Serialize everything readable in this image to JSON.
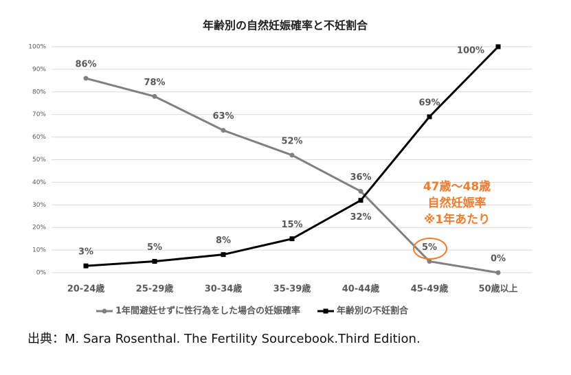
{
  "chart_data": {
    "type": "line",
    "title": "年齢別の自然妊娠確率と不妊割合",
    "categories": [
      "20-24歳",
      "25-29歳",
      "30-34歳",
      "35-39歳",
      "40-44歳",
      "45-49歳",
      "50歳以上"
    ],
    "series": [
      {
        "name": "1年間避妊せずに性行為をした場合の妊娠確率",
        "color": "#808080",
        "marker": "circle",
        "values": [
          86,
          78,
          63,
          52,
          36,
          5,
          0
        ],
        "value_labels": [
          "86%",
          "78%",
          "63%",
          "52%",
          "36%",
          "5%",
          "0%"
        ]
      },
      {
        "name": "年齢別の不妊割合",
        "color": "#000000",
        "marker": "square",
        "values": [
          3,
          5,
          8,
          15,
          32,
          69,
          100
        ],
        "value_labels": [
          "3%",
          "5%",
          "8%",
          "15%",
          "32%",
          "69%",
          "100%"
        ]
      }
    ],
    "ylim": [
      0,
      100
    ],
    "yticks": [
      {
        "value": 0,
        "label": "0%"
      },
      {
        "value": 10,
        "label": "10%"
      },
      {
        "value": 20,
        "label": "20%"
      },
      {
        "value": 30,
        "label": "30%"
      },
      {
        "value": 40,
        "label": "40%"
      },
      {
        "value": 50,
        "label": "50%"
      },
      {
        "value": 60,
        "label": "60%"
      },
      {
        "value": 70,
        "label": "70%"
      },
      {
        "value": 80,
        "label": "80%"
      },
      {
        "value": 90,
        "label": "90%"
      },
      {
        "value": 100,
        "label": "100%"
      }
    ],
    "grid": true,
    "legend": "bottom",
    "annotation": [
      "47歳～48歳",
      "自然妊娠率",
      "※1年あたり"
    ],
    "annotation_color": "#ed7d31"
  },
  "source": "出典：M. Sara Rosenthal. The Fertility Sourcebook.Third Edition."
}
